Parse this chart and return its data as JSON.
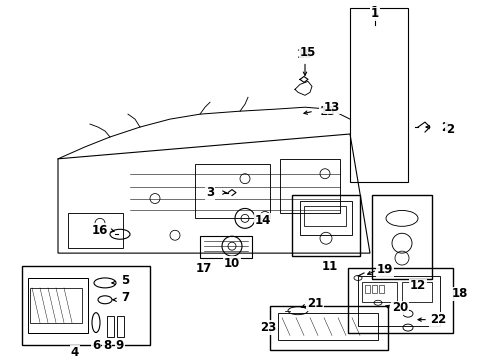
{
  "bg_color": "#ffffff",
  "line_color": "#000000",
  "lw": 0.8,
  "fs": 8.5,
  "figsize": [
    4.89,
    3.6
  ],
  "dpi": 100
}
